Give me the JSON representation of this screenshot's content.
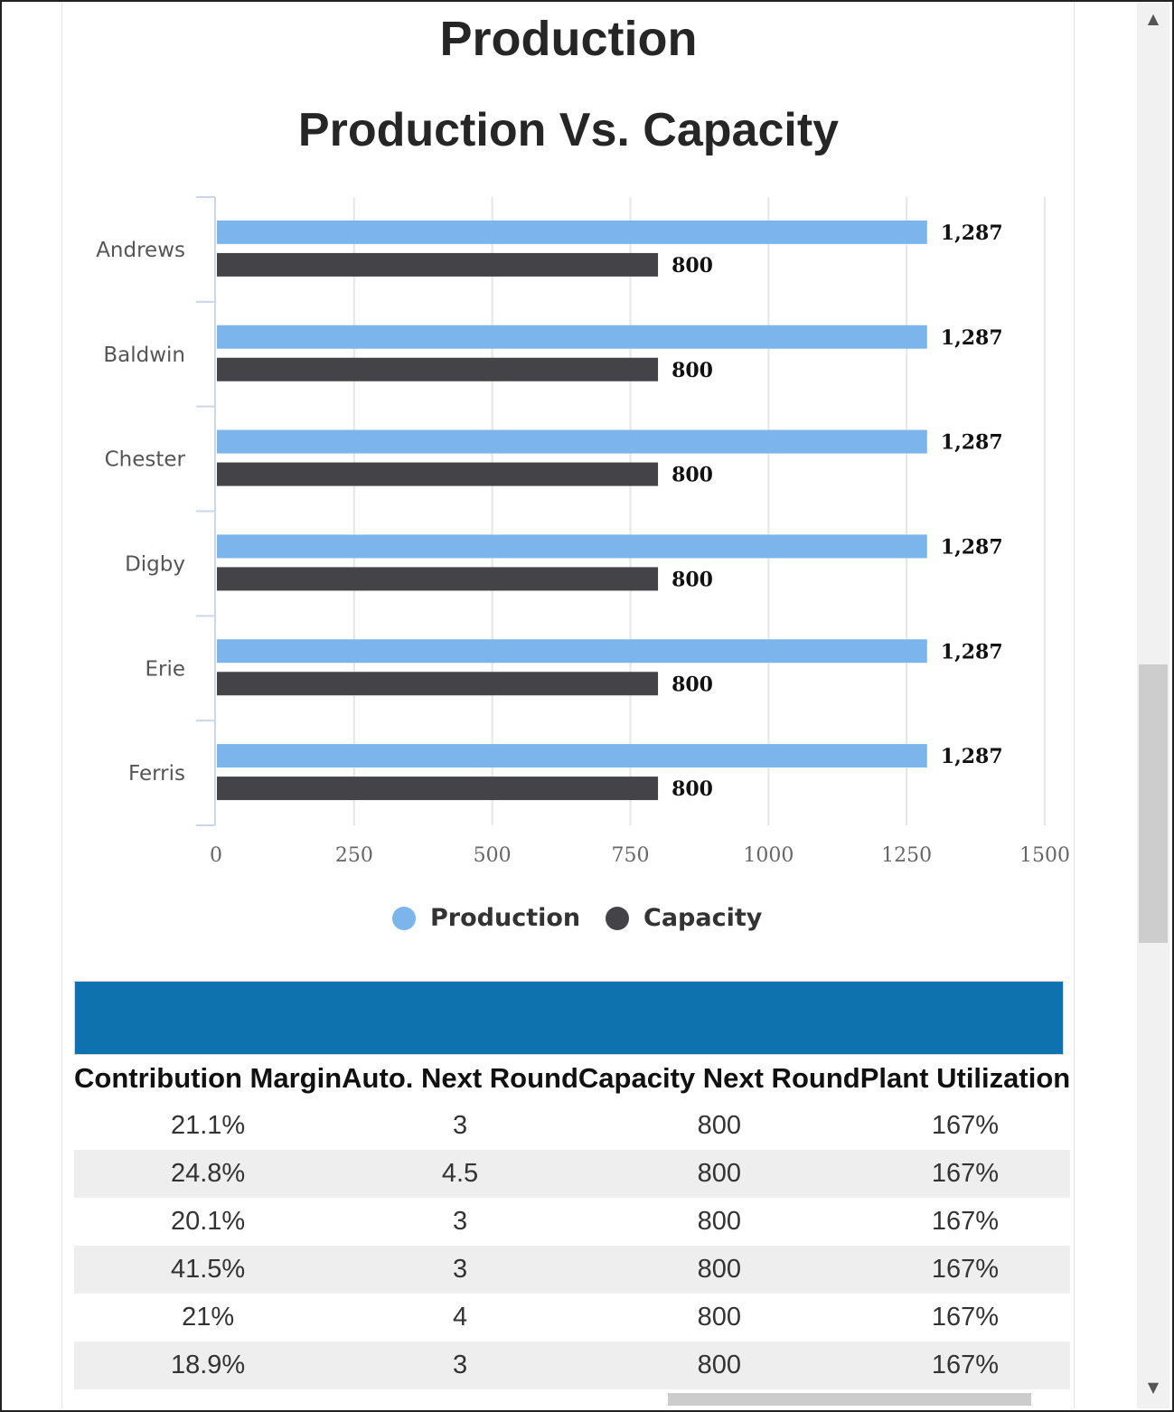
{
  "page": {
    "title": "Production",
    "subtitle": "Production Vs. Capacity"
  },
  "chart_data": {
    "type": "bar",
    "orientation": "horizontal",
    "categories": [
      "Andrews",
      "Baldwin",
      "Chester",
      "Digby",
      "Erie",
      "Ferris"
    ],
    "series": [
      {
        "name": "Production",
        "values": [
          1287,
          1287,
          1287,
          1287,
          1287,
          1287
        ],
        "labels": [
          "1,287",
          "1,287",
          "1,287",
          "1,287",
          "1,287",
          "1,287"
        ],
        "color": "#7cb5ec"
      },
      {
        "name": "Capacity",
        "values": [
          800,
          800,
          800,
          800,
          800,
          800
        ],
        "labels": [
          "800",
          "800",
          "800",
          "800",
          "800",
          "800"
        ],
        "color": "#434348"
      }
    ],
    "xticks": [
      "0",
      "250",
      "500",
      "750",
      "1000",
      "1250",
      "1500"
    ],
    "xlim": [
      0,
      1500
    ],
    "grid": true,
    "legend_position": "bottom"
  },
  "table": {
    "headers": [
      "Contribution Margin",
      "Auto. Next Round",
      "Capacity Next Round",
      "Plant Utilization"
    ],
    "rows": [
      [
        "21.1%",
        "3",
        "800",
        "167%"
      ],
      [
        "24.8%",
        "4.5",
        "800",
        "167%"
      ],
      [
        "20.1%",
        "3",
        "800",
        "167%"
      ],
      [
        "41.5%",
        "3",
        "800",
        "167%"
      ],
      [
        "21%",
        "4",
        "800",
        "167%"
      ],
      [
        "18.9%",
        "3",
        "800",
        "167%"
      ]
    ],
    "header_color": "#0e72ae"
  },
  "scroll": {
    "up_icon": "▲",
    "down_icon": "▼"
  }
}
